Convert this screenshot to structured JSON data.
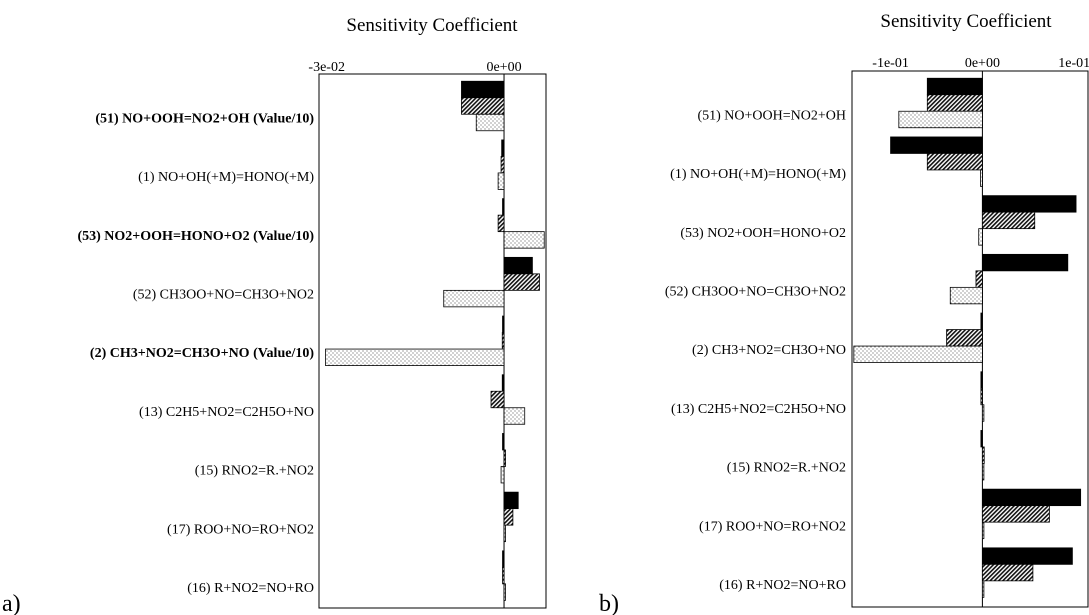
{
  "chart_data": [
    {
      "panel_label": "a)",
      "type": "bar",
      "orientation": "horizontal",
      "title": "Sensitivity Coefficient",
      "xlim": [
        -0.0313,
        0.0071
      ],
      "ticks": [
        {
          "value": -0.03,
          "label": "-3e-02"
        },
        {
          "value": 0.0,
          "label": "0e+00"
        }
      ],
      "categories": [
        {
          "label": "(51) NO+OOH=NO2+OH (Value/10)",
          "bold": true
        },
        {
          "label": "(1) NO+OH(+M)=HONO(+M)",
          "bold": false
        },
        {
          "label": "(53) NO2+OOH=HONO+O2 (Value/10)",
          "bold": true
        },
        {
          "label": "(52) CH3OO+NO=CH3O+NO2",
          "bold": false
        },
        {
          "label": "(2) CH3+NO2=CH3O+NO (Value/10)",
          "bold": true
        },
        {
          "label": "(13) C2H5+NO2=C2H5O+NO",
          "bold": false
        },
        {
          "label": "(15) RNO2=R.+NO2",
          "bold": false
        },
        {
          "label": "(17) ROO+NO=RO+NO2",
          "bold": false
        },
        {
          "label": "(16) R+NO2=NO+RO",
          "bold": false
        }
      ],
      "series": [
        {
          "pattern": "solid",
          "color": "#000000",
          "values": [
            -0.0072,
            -0.0004,
            -0.0001,
            0.0048,
            -0.0002,
            -0.0003,
            -0.0002,
            0.0024,
            -0.0001
          ]
        },
        {
          "pattern": "hatched",
          "color": "#555555",
          "values": [
            -0.0072,
            -0.0005,
            -0.001,
            0.006,
            -0.0003,
            -0.0022,
            0.0002,
            0.0015,
            -0.0001
          ]
        },
        {
          "pattern": "dotted",
          "color": "#ffffff",
          "values": [
            -0.0047,
            -0.001,
            0.0068,
            -0.0102,
            -0.0302,
            0.0035,
            -0.0005,
            0.0001,
            0.0001
          ]
        }
      ]
    },
    {
      "panel_label": "b)",
      "type": "bar",
      "orientation": "horizontal",
      "title": "Sensitivity Coefficient",
      "xlim": [
        -0.142,
        0.115
      ],
      "ticks": [
        {
          "value": -0.1,
          "label": "-1e-01"
        },
        {
          "value": 0.0,
          "label": "0e+00"
        },
        {
          "value": 0.1,
          "label": "1e-01"
        }
      ],
      "categories": [
        {
          "label": "(51) NO+OOH=NO2+OH",
          "bold": false
        },
        {
          "label": "(1) NO+OH(+M)=HONO(+M)",
          "bold": false
        },
        {
          "label": "(53) NO2+OOH=HONO+O2",
          "bold": false
        },
        {
          "label": "(52) CH3OO+NO=CH3O+NO2",
          "bold": false
        },
        {
          "label": "(2) CH3+NO2=CH3O+NO",
          "bold": false
        },
        {
          "label": "(13) C2H5+NO2=C2H5O+NO",
          "bold": false
        },
        {
          "label": "(15) RNO2=R.+NO2",
          "bold": false
        },
        {
          "label": "(17) ROO+NO=RO+NO2",
          "bold": false
        },
        {
          "label": "(16) R+NO2=NO+RO",
          "bold": false
        }
      ],
      "series": [
        {
          "pattern": "solid",
          "color": "#000000",
          "values": [
            -0.06,
            -0.1,
            0.102,
            0.093,
            -0.001,
            -0.001,
            -0.001,
            0.107,
            0.098
          ]
        },
        {
          "pattern": "hatched",
          "color": "#555555",
          "values": [
            -0.06,
            -0.06,
            0.057,
            -0.007,
            -0.039,
            -0.001,
            0.002,
            0.073,
            0.055
          ]
        },
        {
          "pattern": "dotted",
          "color": "#ffffff",
          "values": [
            -0.091,
            -0.002,
            -0.004,
            -0.035,
            -0.14,
            0.001,
            0.001,
            0.001,
            0.001
          ]
        }
      ]
    }
  ]
}
